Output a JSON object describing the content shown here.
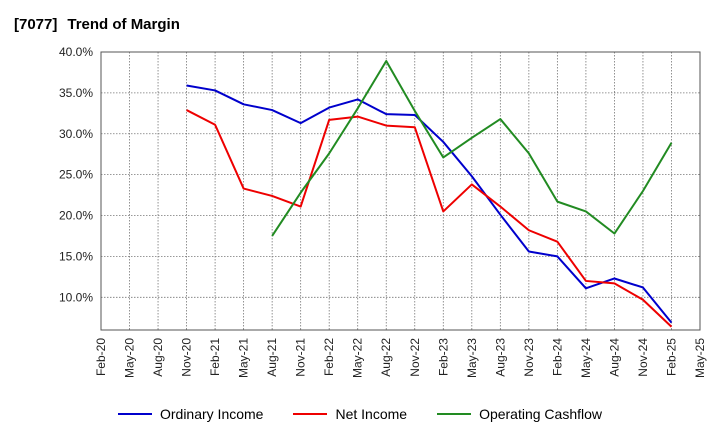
{
  "title": {
    "code": "[7077]",
    "text": "Trend of Margin"
  },
  "chart_data": {
    "type": "line",
    "x": [
      "Feb-20",
      "May-20",
      "Aug-20",
      "Nov-20",
      "Feb-21",
      "May-21",
      "Aug-21",
      "Nov-21",
      "Feb-22",
      "May-22",
      "Aug-22",
      "Nov-22",
      "Feb-23",
      "May-23",
      "Aug-23",
      "Nov-23",
      "Feb-24",
      "May-24",
      "Aug-24",
      "Nov-24",
      "Feb-25",
      "May-25"
    ],
    "ylim": [
      6.0,
      40.0
    ],
    "yticks": [
      10,
      15,
      20,
      25,
      30,
      35,
      40
    ],
    "ytick_labels": [
      "10.0%",
      "15.0%",
      "20.0%",
      "25.0%",
      "30.0%",
      "35.0%",
      "40.0%"
    ],
    "grid": true,
    "legend_position": "bottom",
    "series": [
      {
        "name": "Ordinary Income",
        "color": "#0000cc",
        "values": [
          null,
          null,
          null,
          35.9,
          35.3,
          33.6,
          32.9,
          31.3,
          33.2,
          34.2,
          32.4,
          32.3,
          29.0,
          24.8,
          20.1,
          15.6,
          15.0,
          11.1,
          12.3,
          11.2,
          6.9,
          null
        ]
      },
      {
        "name": "Net Income",
        "color": "#ee0000",
        "values": [
          null,
          null,
          null,
          32.9,
          31.1,
          23.3,
          22.4,
          21.1,
          31.7,
          32.1,
          31.0,
          30.8,
          20.5,
          23.8,
          21.1,
          18.2,
          16.8,
          12.0,
          11.7,
          9.7,
          6.4,
          null
        ]
      },
      {
        "name": "Operating Cashflow",
        "color": "#228b22",
        "values": [
          null,
          null,
          null,
          null,
          null,
          null,
          17.5,
          22.8,
          27.6,
          33.1,
          38.9,
          32.8,
          27.1,
          29.5,
          31.8,
          27.6,
          21.7,
          20.5,
          17.8,
          23.0,
          28.9,
          null
        ]
      }
    ]
  }
}
